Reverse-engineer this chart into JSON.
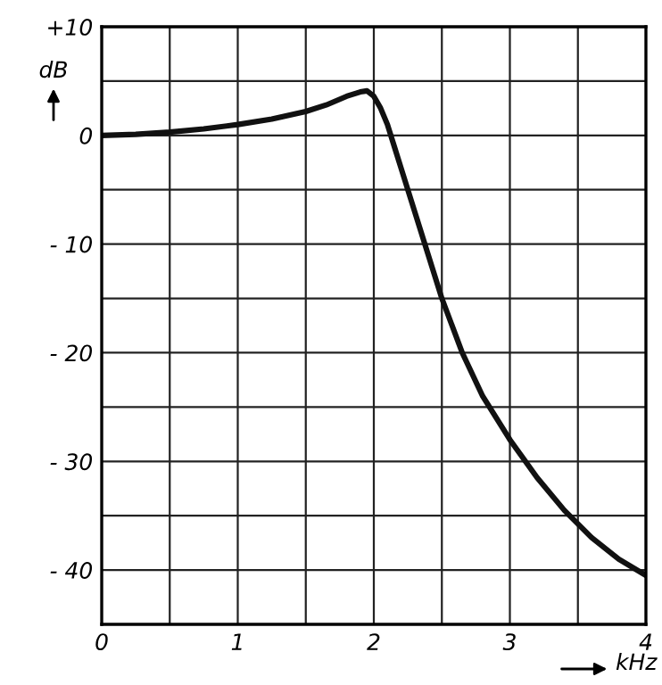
{
  "chart_data": {
    "type": "line",
    "xlabel": "kHz",
    "ylabel": "dB",
    "xlim": [
      0,
      4
    ],
    "ylim": [
      -45,
      10
    ],
    "xticks": [
      0,
      {
        "value": 0.5,
        "label": null
      },
      1,
      {
        "value": 1.5,
        "label": null
      },
      2,
      {
        "value": 2.5,
        "label": null
      },
      3,
      {
        "value": 3.5,
        "label": null
      },
      4
    ],
    "yticks": [
      {
        "value": 10,
        "label": "+10"
      },
      {
        "value": 5,
        "label": null
      },
      0,
      {
        "value": -5,
        "label": null
      },
      {
        "value": -10,
        "label": "- 10"
      },
      {
        "value": -15,
        "label": null
      },
      {
        "value": -20,
        "label": "- 20"
      },
      {
        "value": -25,
        "label": null
      },
      {
        "value": -30,
        "label": "- 30"
      },
      {
        "value": -35,
        "label": null
      },
      {
        "value": -40,
        "label": "- 40"
      }
    ],
    "grid": true,
    "marker": "none",
    "line_style": "solid",
    "series": [
      {
        "color": "#111111",
        "x": [
          0,
          0.25,
          0.5,
          0.75,
          1,
          1.25,
          1.5,
          1.65,
          1.8,
          1.9,
          1.95,
          2.0,
          2.05,
          2.1,
          2.15,
          2.2,
          2.3,
          2.4,
          2.5,
          2.65,
          2.8,
          3.0,
          3.2,
          3.4,
          3.6,
          3.8,
          4.0
        ],
        "values": [
          0,
          0.1,
          0.3,
          0.6,
          1,
          1.5,
          2.2,
          2.8,
          3.6,
          4,
          4.1,
          3.6,
          2.5,
          1,
          -1,
          -3,
          -7,
          -11,
          -15,
          -20,
          -24,
          -28,
          -31.5,
          -34.5,
          -37,
          -39,
          -40.5
        ]
      }
    ]
  }
}
